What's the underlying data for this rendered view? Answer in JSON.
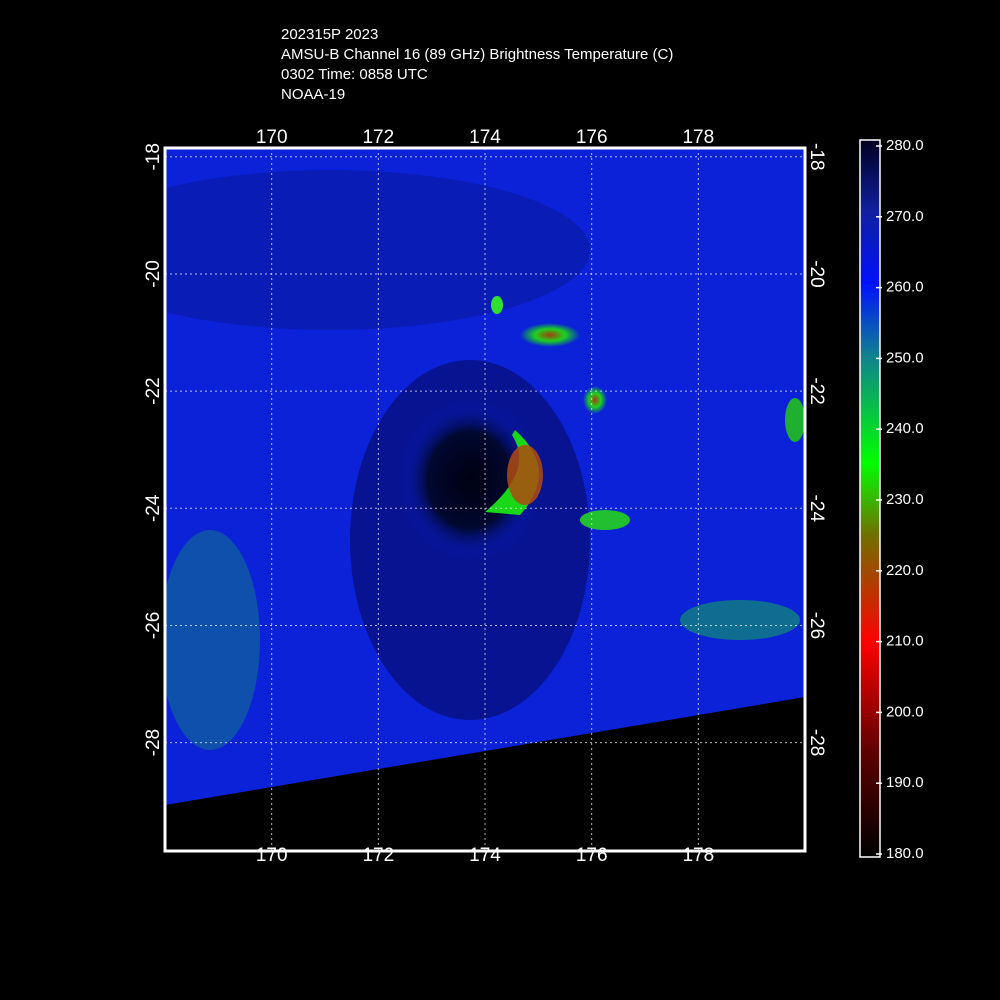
{
  "header": {
    "lines": [
      "202315P 2023",
      "AMSU-B Channel 16 (89 GHz) Brightness Temperature (C)",
      "0302 Time: 0858 UTC",
      "NOAA-19"
    ]
  },
  "map": {
    "xlim": [
      168,
      180
    ],
    "ylim": [
      -29.85,
      -17.85
    ],
    "xticks": [
      170,
      172,
      174,
      176,
      178
    ],
    "yticks": [
      -18,
      -20,
      -22,
      -24,
      -26,
      -28
    ]
  },
  "colorbar": {
    "lim": [
      180,
      280
    ],
    "ticks": [
      {
        "value": 280,
        "label": "280.0"
      },
      {
        "value": 270,
        "label": "270.0"
      },
      {
        "value": 260,
        "label": "260.0"
      },
      {
        "value": 250,
        "label": "250.0"
      },
      {
        "value": 240,
        "label": "240.0"
      },
      {
        "value": 230,
        "label": "230.0"
      },
      {
        "value": 220,
        "label": "220.0"
      },
      {
        "value": 210,
        "label": "210.0"
      },
      {
        "value": 200,
        "label": "200.0"
      },
      {
        "value": 190,
        "label": "190.0"
      },
      {
        "value": 180,
        "label": "180.0"
      }
    ]
  }
}
